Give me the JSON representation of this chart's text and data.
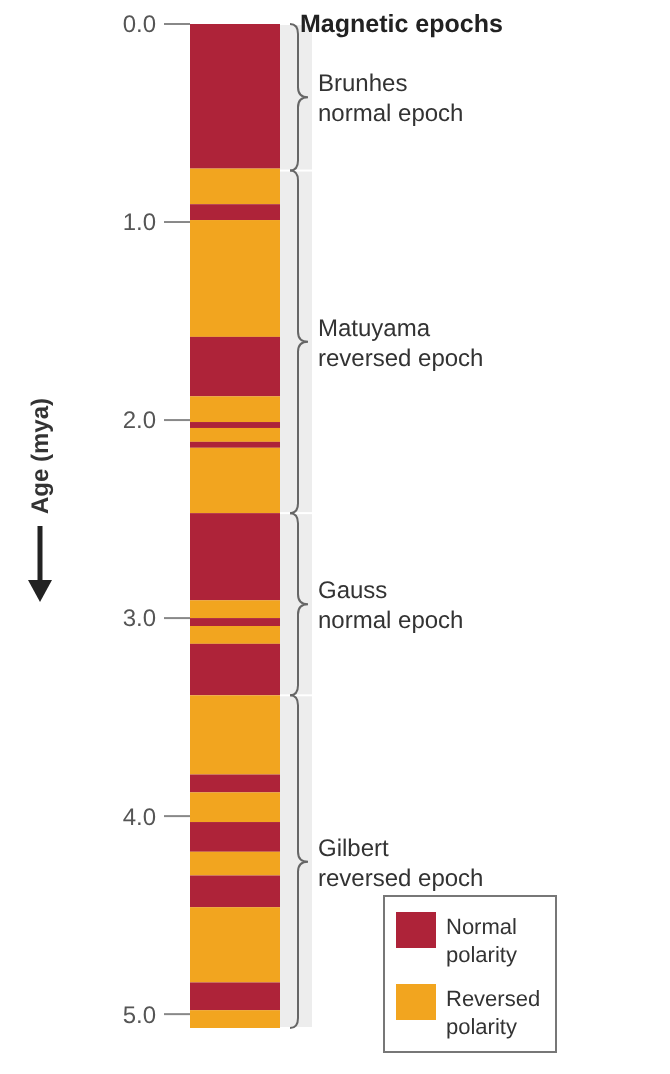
{
  "chart_data": {
    "type": "bar",
    "stacked": true,
    "title": "Magnetic epochs",
    "ylabel": "Age (mya)",
    "categories": [
      null
    ],
    "ylim": [
      5.07,
      0
    ],
    "yticks": [
      {
        "value": 0,
        "label": "0.0"
      },
      {
        "value": 1,
        "label": "1.0"
      },
      {
        "value": 2,
        "label": "2.0"
      },
      {
        "value": 3,
        "label": "3.0"
      },
      {
        "value": 4,
        "label": "4.0"
      },
      {
        "value": 5,
        "label": "5.0"
      }
    ],
    "legend": "bottom right",
    "series": [
      {
        "name": "Normal polarity",
        "color": "#ae2339",
        "values": [
          0.73
        ]
      },
      {
        "name": "Reversed polarity",
        "color": "#f2a51f",
        "values": [
          0.18
        ]
      },
      {
        "color": "#ae2339",
        "values": [
          0.08
        ]
      },
      {
        "color": "#f2a51f",
        "values": [
          0.59
        ]
      },
      {
        "color": "#ae2339",
        "values": [
          0.3
        ]
      },
      {
        "color": "#f2a51f",
        "values": [
          0.13
        ]
      },
      {
        "color": "#ae2339",
        "values": [
          0.03
        ]
      },
      {
        "color": "#f2a51f",
        "values": [
          0.07
        ]
      },
      {
        "color": "#ae2339",
        "values": [
          0.03
        ]
      },
      {
        "color": "#f2a51f",
        "values": [
          0.33
        ]
      },
      {
        "color": "#ae2339",
        "values": [
          0.44
        ]
      },
      {
        "color": "#f2a51f",
        "values": [
          0.09
        ]
      },
      {
        "color": "#ae2339",
        "values": [
          0.04
        ]
      },
      {
        "color": "#f2a51f",
        "values": [
          0.09
        ]
      },
      {
        "color": "#ae2339",
        "values": [
          0.26
        ]
      },
      {
        "color": "#f2a51f",
        "values": [
          0.4
        ]
      },
      {
        "color": "#ae2339",
        "values": [
          0.09
        ]
      },
      {
        "color": "#f2a51f",
        "values": [
          0.15
        ]
      },
      {
        "color": "#ae2339",
        "values": [
          0.15
        ]
      },
      {
        "color": "#f2a51f",
        "values": [
          0.12
        ]
      },
      {
        "color": "#ae2339",
        "values": [
          0.16
        ]
      },
      {
        "color": "#f2a51f",
        "values": [
          0.38
        ]
      },
      {
        "color": "#ae2339",
        "values": [
          0.14
        ]
      },
      {
        "color": "#f2a51f",
        "values": [
          0.09
        ]
      }
    ],
    "bands": [
      {
        "axis": "y",
        "from": 0,
        "to": 0.74,
        "label": "Brunhes normal epoch"
      },
      {
        "axis": "y",
        "from": 0.74,
        "to": 2.47,
        "label": "Matuyama reversed epoch"
      },
      {
        "axis": "y",
        "from": 2.47,
        "to": 3.39,
        "label": "Gauss normal epoch"
      },
      {
        "axis": "y",
        "from": 3.39,
        "to": 5.07,
        "label": "Gilbert reversed epoch"
      }
    ]
  }
}
